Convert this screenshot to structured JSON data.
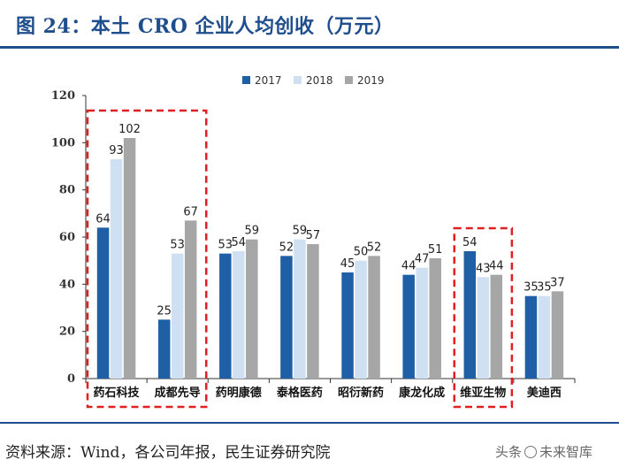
{
  "header": {
    "title": "图 24：本土 CRO 企业人均创收（万元）"
  },
  "footer": {
    "source": "资料来源：Wind，各公司年报，民生证券研究院",
    "watermark_prefix": "头条",
    "watermark_suffix": "未来智库"
  },
  "colors": {
    "s2017": "#1f5fa6",
    "s2018": "#cfe0f3",
    "s2019": "#a6a6a6",
    "highlight": "#e02020",
    "axis": "#333333"
  },
  "chart_data": {
    "type": "bar",
    "title": "本土 CRO 企业人均创收（万元）",
    "xlabel": "",
    "ylabel": "",
    "ylim": [
      0,
      120
    ],
    "yticks": [
      "0",
      "20",
      "40",
      "60",
      "80",
      "100",
      "120"
    ],
    "categories": [
      "药石科技",
      "成都先导",
      "药明康德",
      "泰格医药",
      "昭衍新药",
      "康龙化成",
      "维亚生物",
      "美迪西"
    ],
    "series": [
      {
        "name": "2017",
        "values": [
          64,
          25,
          53,
          52,
          45,
          44,
          54,
          35
        ]
      },
      {
        "name": "2018",
        "values": [
          93,
          53,
          54,
          59,
          50,
          47,
          43,
          35
        ]
      },
      {
        "name": "2019",
        "values": [
          102,
          67,
          59,
          57,
          52,
          51,
          44,
          37
        ]
      }
    ],
    "legend": "top-center",
    "highlight_groups": [
      [
        0,
        1
      ],
      [
        6,
        6
      ]
    ]
  }
}
